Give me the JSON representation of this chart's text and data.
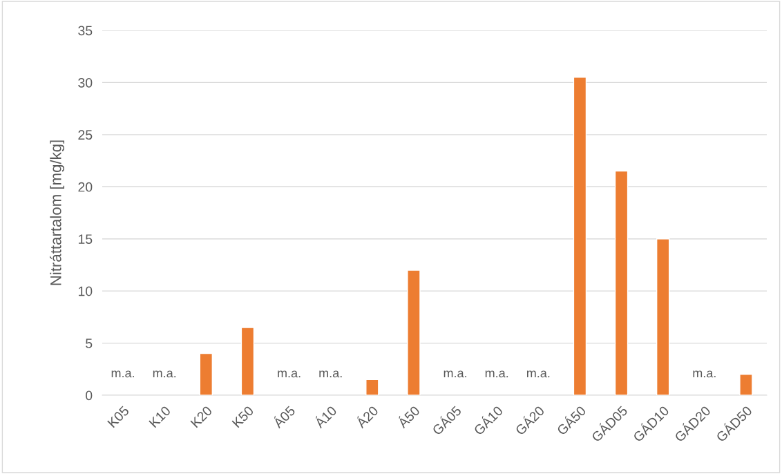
{
  "chart_data": {
    "type": "bar",
    "ylabel": "Nitráttartalom [mg/kg]",
    "categories": [
      "K05",
      "K10",
      "K20",
      "K50",
      "Á05",
      "Á10",
      "Á20",
      "Á50",
      "GÁ05",
      "GÁ10",
      "GÁ20",
      "GÁ50",
      "GÁD05",
      "GÁD10",
      "GÁD20",
      "GÁD50"
    ],
    "values": [
      null,
      null,
      4,
      6.5,
      null,
      null,
      1.5,
      12,
      null,
      null,
      null,
      30.5,
      21.5,
      15,
      null,
      2
    ],
    "value_labels": [
      "m.a.",
      "m.a.",
      null,
      null,
      "m.a.",
      "m.a.",
      null,
      null,
      "m.a.",
      "m.a.",
      "m.a.",
      null,
      null,
      null,
      "m.a.",
      null
    ],
    "color": "#ed7d31",
    "ylim": [
      0,
      35
    ],
    "yticks": [
      0,
      5,
      10,
      15,
      20,
      25,
      30,
      35
    ],
    "grid": "y"
  }
}
